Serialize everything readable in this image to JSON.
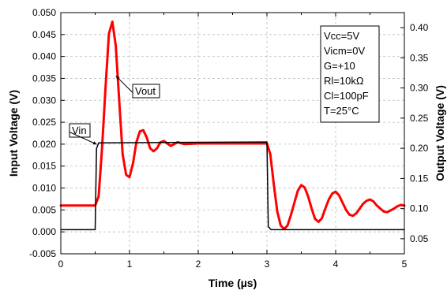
{
  "chart_data": {
    "type": "line",
    "xlabel": "Time (µs)",
    "ylabel_left": "Input Voltage (V)",
    "ylabel_right": "Output Voltage (V)",
    "xlim": [
      0,
      5
    ],
    "ylim_left": [
      -0.005,
      0.05
    ],
    "ylim_right": [
      0.025,
      0.425
    ],
    "x_ticks": [
      "0",
      "1",
      "2",
      "3",
      "4",
      "5"
    ],
    "y_left_ticks": [
      "-0.005",
      "0.000",
      "0.005",
      "0.010",
      "0.015",
      "0.020",
      "0.025",
      "0.030",
      "0.035",
      "0.040",
      "0.045",
      "0.050"
    ],
    "y_right_ticks": [
      "0.05",
      "0.10",
      "0.15",
      "0.20",
      "0.25",
      "0.30",
      "0.35",
      "0.40"
    ],
    "grid": true,
    "conditions": [
      "Vcc=5V",
      "Vicm=0V",
      "G=+10",
      "Rl=10kΩ",
      "Cl=100pF",
      "T=25°C"
    ],
    "series": [
      {
        "name": "Vin",
        "axis": "left",
        "color": "#000000",
        "x": [
          0,
          0.5,
          0.52,
          0.55,
          3.0,
          3.02,
          3.06,
          5.0
        ],
        "values": [
          0.0005,
          0.0005,
          0.019,
          0.0203,
          0.0205,
          0.0012,
          0.0005,
          0.0005
        ]
      },
      {
        "name": "Vout",
        "axis": "right",
        "color": "#ff0000",
        "x": [
          0,
          0.5,
          0.55,
          0.6,
          0.65,
          0.7,
          0.75,
          0.8,
          0.85,
          0.9,
          0.95,
          1.0,
          1.05,
          1.1,
          1.15,
          1.2,
          1.25,
          1.3,
          1.35,
          1.4,
          1.45,
          1.5,
          1.6,
          1.7,
          1.8,
          2.0,
          2.5,
          3.0,
          3.05,
          3.1,
          3.15,
          3.2,
          3.25,
          3.3,
          3.35,
          3.4,
          3.45,
          3.5,
          3.55,
          3.6,
          3.65,
          3.7,
          3.75,
          3.8,
          3.85,
          3.9,
          3.95,
          4.0,
          4.05,
          4.1,
          4.15,
          4.2,
          4.25,
          4.3,
          4.35,
          4.4,
          4.45,
          4.5,
          4.55,
          4.6,
          4.65,
          4.7,
          4.75,
          4.8,
          4.85,
          4.9,
          4.95,
          5.0
        ],
        "values": [
          0.105,
          0.105,
          0.12,
          0.2,
          0.3,
          0.39,
          0.41,
          0.37,
          0.28,
          0.19,
          0.156,
          0.152,
          0.175,
          0.21,
          0.228,
          0.23,
          0.218,
          0.2,
          0.195,
          0.2,
          0.21,
          0.212,
          0.204,
          0.21,
          0.207,
          0.208,
          0.208,
          0.208,
          0.19,
          0.14,
          0.095,
          0.072,
          0.066,
          0.072,
          0.09,
          0.11,
          0.13,
          0.139,
          0.135,
          0.12,
          0.1,
          0.083,
          0.078,
          0.084,
          0.1,
          0.115,
          0.125,
          0.128,
          0.122,
          0.11,
          0.098,
          0.09,
          0.088,
          0.092,
          0.1,
          0.108,
          0.113,
          0.115,
          0.112,
          0.105,
          0.1,
          0.095,
          0.094,
          0.097,
          0.1,
          0.104,
          0.106,
          0.105
        ]
      }
    ],
    "annotations": [
      {
        "label": "Vout",
        "x": 0.79,
        "y": 0.32,
        "axis": "right"
      },
      {
        "label": "Vin",
        "x": 0.5,
        "y": 0.0205,
        "axis": "left"
      }
    ]
  }
}
